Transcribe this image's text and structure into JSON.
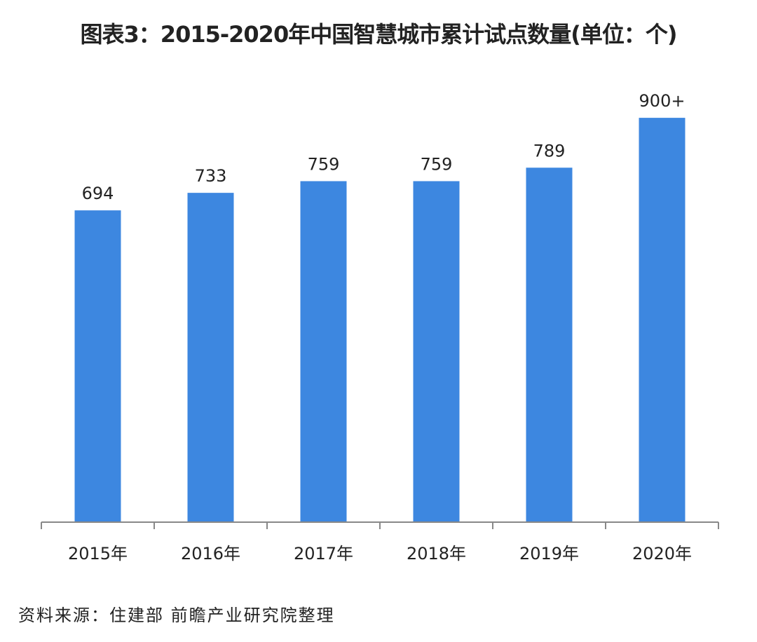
{
  "chart_data": {
    "type": "bar",
    "title": "图表3：2015-2020年中国智慧城市累计试点数量(单位：个)",
    "xlabel": "",
    "ylabel": "",
    "categories": [
      "2015年",
      "2016年",
      "2017年",
      "2018年",
      "2019年",
      "2020年"
    ],
    "values": [
      694,
      733,
      759,
      759,
      789,
      900
    ],
    "data_labels": [
      "694",
      "733",
      "759",
      "759",
      "789",
      "900+"
    ],
    "ylim": [
      0,
      1000
    ],
    "grid": false,
    "bar_color": "#3d87e0",
    "source": "资料来源：住建部 前瞻产业研究院整理"
  }
}
